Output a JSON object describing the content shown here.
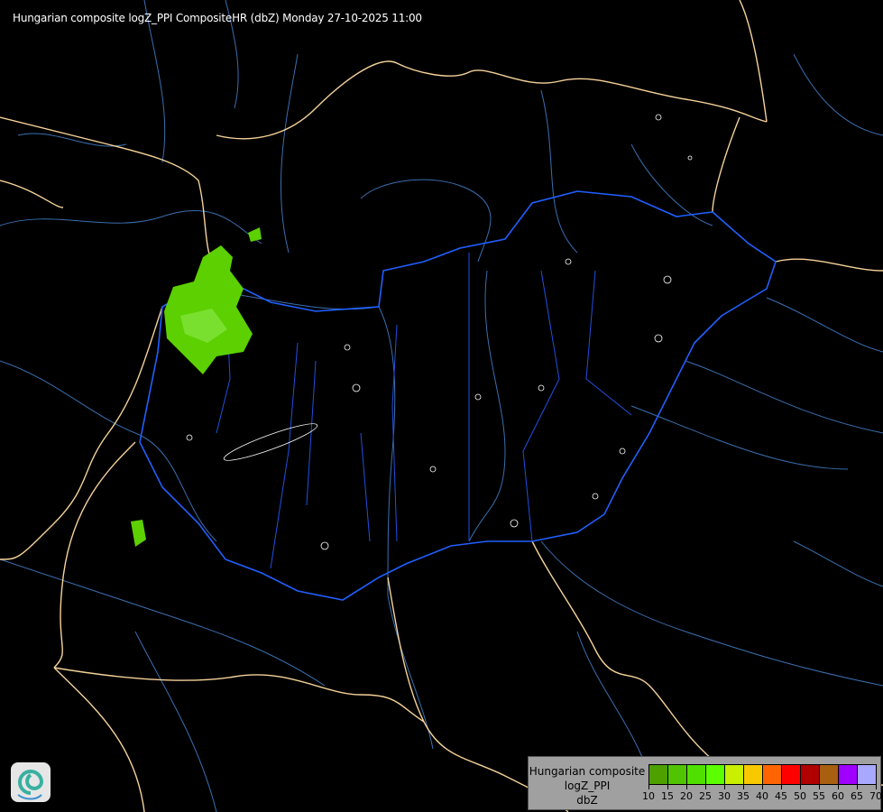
{
  "title": "Hungarian composite logZ_PPI CompositeHR (dbZ) Monday 27-10-2025 11:00",
  "legend": {
    "label_lines": [
      "Hungarian composite",
      "logZ_PPI",
      "dbZ"
    ],
    "ticks": [
      "10",
      "15",
      "20",
      "25",
      "30",
      "35",
      "40",
      "45",
      "50",
      "55",
      "60",
      "65",
      "70"
    ],
    "colors": [
      "#4ea000",
      "#50c400",
      "#50e000",
      "#5cff00",
      "#c8f000",
      "#f8c800",
      "#ff6400",
      "#ff0000",
      "#b00000",
      "#a86010",
      "#a000ff",
      "#a8a8ff"
    ]
  },
  "map_colors": {
    "background": "#000000",
    "country_border": "#f5d29a",
    "hungary_border": "#2060ff",
    "rivers": "#3a6fb0",
    "echo": "#5cd000",
    "contours": "#ffffff"
  },
  "logo": {
    "name": "swirl-logo-icon"
  }
}
